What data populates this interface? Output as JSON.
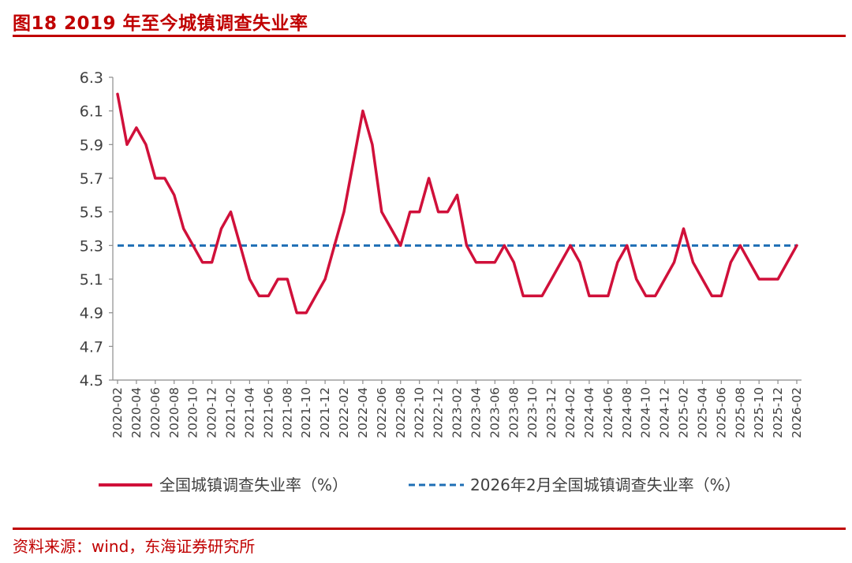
{
  "header": {
    "title": "图18  2019 年至今城镇调查失业率"
  },
  "footer": {
    "source": "资料来源：wind，东海证券研究所"
  },
  "chart_data": {
    "type": "line",
    "title": "图18  2019 年至今城镇调查失业率",
    "xlabel": "",
    "ylabel": "",
    "ylim": [
      4.5,
      6.3
    ],
    "yticks": [
      "6.3",
      "6.1",
      "5.9",
      "5.7",
      "5.5",
      "5.3",
      "5.1",
      "4.9",
      "4.7",
      "4.5"
    ],
    "xtick_labels": [
      "2020-02",
      "2020-04",
      "2020-06",
      "2020-08",
      "2020-10",
      "2020-12",
      "2021-02",
      "2021-04",
      "2021-06",
      "2021-08",
      "2021-10",
      "2021-12",
      "2022-02",
      "2022-04",
      "2022-06",
      "2022-08",
      "2022-10",
      "2022-12",
      "2023-02",
      "2023-04",
      "2023-06",
      "2023-08",
      "2023-10",
      "2023-12",
      "2024-02",
      "2024-04",
      "2024-06",
      "2024-08",
      "2024-10",
      "2024-12",
      "2025-02",
      "2025-04",
      "2025-06",
      "2025-08",
      "2025-10",
      "2025-12",
      "2026-02"
    ],
    "grid": false,
    "legend_position": "bottom",
    "series": [
      {
        "name": "全国城镇调查失业率（%）",
        "color": "#d0103a",
        "style": "solid",
        "values": [
          6.2,
          5.9,
          6.0,
          5.9,
          5.7,
          5.7,
          5.6,
          5.4,
          5.3,
          5.2,
          5.2,
          5.4,
          5.5,
          5.3,
          5.1,
          5.0,
          5.0,
          5.1,
          5.1,
          4.9,
          4.9,
          5.0,
          5.1,
          5.3,
          5.5,
          5.8,
          6.1,
          5.9,
          5.5,
          5.4,
          5.3,
          5.5,
          5.5,
          5.7,
          5.5,
          5.5,
          5.6,
          5.3,
          5.2,
          5.2,
          5.2,
          5.3,
          5.2,
          5.0,
          5.0,
          5.0,
          5.1,
          5.2,
          5.3,
          5.2,
          5.0,
          5.0,
          5.0,
          5.2,
          5.3,
          5.1,
          5.0,
          5.0,
          5.1,
          5.2,
          5.4,
          5.2,
          5.1,
          5.0,
          5.0,
          5.2,
          5.3,
          5.2,
          5.1,
          5.1,
          5.1,
          5.2,
          5.3
        ]
      },
      {
        "name": "2026年2月全国城镇调查失业率（%）",
        "color": "#1f6fb5",
        "style": "dashed",
        "constant": 5.3
      }
    ]
  }
}
